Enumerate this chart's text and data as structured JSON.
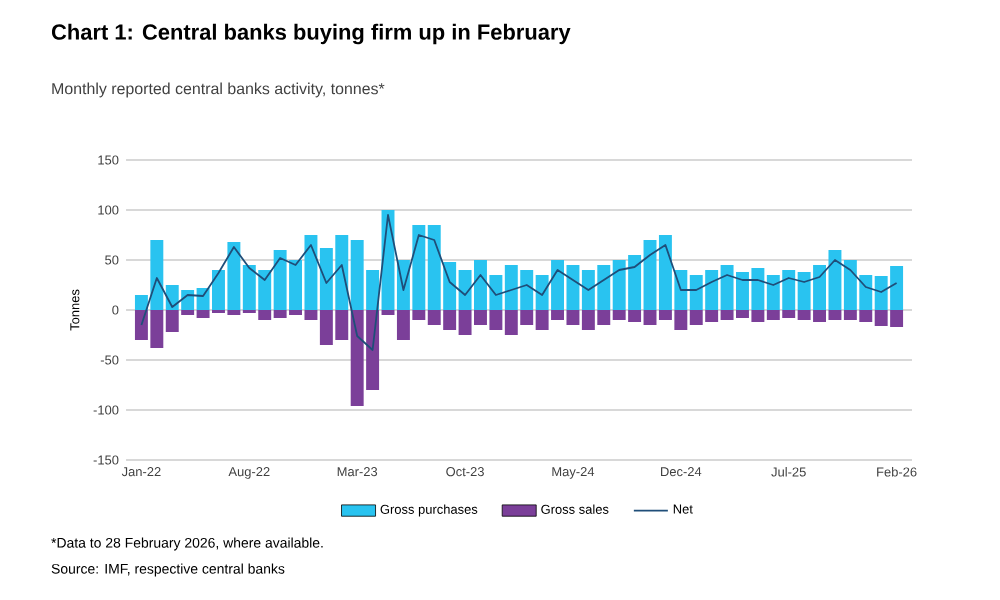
{
  "chart_data": {
    "type": "bar",
    "title": "Chart 1: Central banks buying firm up in February",
    "subtitle": "Monthly reported central banks activity, tonnes*",
    "ylabel": "Tonnes",
    "categories": [
      "Jan-22",
      null,
      null,
      null,
      null,
      null,
      null,
      "Aug-22",
      null,
      null,
      null,
      null,
      null,
      null,
      "Mar-23",
      null,
      null,
      null,
      null,
      null,
      null,
      "Oct-23",
      null,
      null,
      null,
      null,
      null,
      null,
      "May-24",
      null,
      null,
      null,
      null,
      null,
      null,
      "Dec-24",
      null,
      null,
      null,
      null,
      null,
      null,
      "Jul-25",
      null,
      null,
      null,
      null,
      null,
      null,
      "Feb-26"
    ],
    "stacked": true,
    "series": [
      {
        "name": "Gross purchases",
        "color": "#29c3f0",
        "values": [
          15,
          70,
          25,
          20,
          22,
          40,
          68,
          45,
          40,
          60,
          50,
          75,
          62,
          75,
          70,
          40,
          100,
          50,
          85,
          85,
          48,
          40,
          50,
          35,
          45,
          40,
          35,
          50,
          45,
          40,
          45,
          50,
          55,
          70,
          75,
          40,
          35,
          40,
          45,
          38,
          42,
          35,
          40,
          38,
          45,
          60,
          50,
          35,
          34,
          44
        ]
      },
      {
        "name": "Gross sales",
        "color": "#7b3f99",
        "values": [
          -30,
          -38,
          -22,
          -5,
          -8,
          -3,
          -5,
          -3,
          -10,
          -8,
          -5,
          -10,
          -35,
          -30,
          -96,
          -80,
          -5,
          -30,
          -10,
          -15,
          -20,
          -25,
          -15,
          -20,
          -25,
          -15,
          -20,
          -10,
          -15,
          -20,
          -15,
          -10,
          -12,
          -15,
          -10,
          -20,
          -15,
          -12,
          -10,
          -8,
          -12,
          -10,
          -8,
          -10,
          -12,
          -10,
          -10,
          -12,
          -16,
          -17
        ]
      },
      {
        "name": "Net",
        "type": "line",
        "color": "#1f4e79",
        "values": [
          -15,
          32,
          3,
          15,
          14,
          37,
          63,
          42,
          30,
          52,
          45,
          65,
          27,
          45,
          -26,
          -40,
          95,
          20,
          75,
          70,
          28,
          15,
          35,
          15,
          20,
          25,
          15,
          40,
          30,
          20,
          30,
          40,
          43,
          55,
          65,
          20,
          20,
          28,
          35,
          30,
          30,
          25,
          32,
          28,
          33,
          50,
          40,
          23,
          18,
          27
        ]
      }
    ],
    "ylim": [
      -150,
      150
    ],
    "yticks": [
      -150,
      -100,
      -50,
      0,
      50,
      100,
      150
    ],
    "grid": "y",
    "legend": "bottom",
    "annotations": [
      "*Data to 28 February 2026, where available.",
      "Source: IMF, respective central banks"
    ]
  }
}
